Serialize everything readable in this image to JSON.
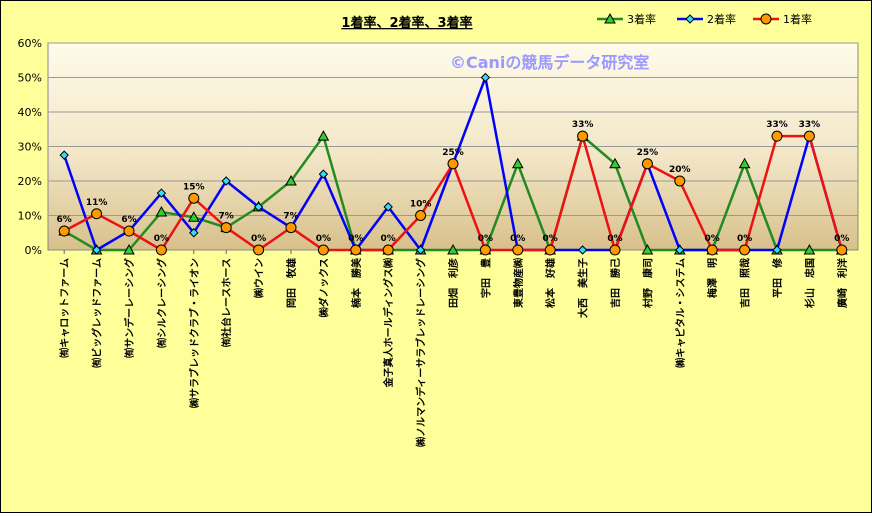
{
  "chart_data": {
    "type": "line",
    "title": "1着率、2着率、3着率",
    "watermark": "©Caniの競馬データ研究室",
    "ylim": [
      0,
      60
    ],
    "yticks": [
      0,
      10,
      20,
      30,
      40,
      50,
      60
    ],
    "y_tick_suffix": "%",
    "grid": true,
    "legend_position": "top-right",
    "categories": [
      "㈲キャロットファーム",
      "㈲ビッグレッドファーム",
      "㈲サンデーレーシング",
      "㈲シルクレーシング",
      "㈱サラブレッドクラブ・ライオン",
      "㈲社台レースホース",
      "㈱ウイン",
      "岡田　牧雄",
      "㈱ダノックス",
      "楠本　勝美",
      "金子真人ホールディングス㈱",
      "㈱ノルマンディーサラブレッドレーシング",
      "田畑　利彦",
      "宇田　豊",
      "東豊物産㈱",
      "松本　好雄",
      "大西　美生子",
      "吉田　勝己",
      "村野　康司",
      "㈱キャピタル・システム",
      "梅澤　明",
      "吉田　照哉",
      "平田　修",
      "杉山　忠国",
      "廣崎　利洋"
    ],
    "series": [
      {
        "name": "3着率",
        "color": "#228B22",
        "marker": "triangle",
        "marker_color": "#33CC33",
        "values": [
          5.5,
          0,
          0,
          11,
          9.5,
          6.5,
          12.5,
          20,
          33,
          0,
          0,
          0,
          0,
          0,
          25,
          0,
          33,
          25,
          0,
          0,
          0,
          25,
          0,
          0,
          0
        ]
      },
      {
        "name": "2着率",
        "color": "#0000FF",
        "marker": "diamond",
        "marker_color": "#33DDFF",
        "values": [
          27.5,
          0,
          5.5,
          16.5,
          5,
          20,
          12.5,
          6.5,
          22,
          0,
          12.5,
          0,
          25,
          50,
          0,
          0,
          0,
          0,
          25,
          0,
          0,
          0,
          0,
          33,
          0
        ]
      },
      {
        "name": "1着率",
        "color": "#EE1111",
        "marker": "circle",
        "marker_color": "#FF9900",
        "values": [
          5.5,
          10.5,
          5.5,
          0,
          15,
          6.5,
          0,
          6.5,
          0,
          0,
          0,
          10,
          25,
          0,
          0,
          0,
          33,
          0,
          25,
          20,
          0,
          0,
          33,
          33,
          0
        ],
        "data_labels": [
          "6%",
          "11%",
          "6%",
          "0%",
          "15%",
          "7%",
          "0%",
          "7%",
          "0%",
          "0%",
          "0%",
          "10%",
          "25%",
          "0%",
          "0%",
          "0%",
          "33%",
          "0%",
          "25%",
          "20%",
          "0%",
          "0%",
          "33%",
          "33%",
          "0%"
        ]
      }
    ]
  }
}
